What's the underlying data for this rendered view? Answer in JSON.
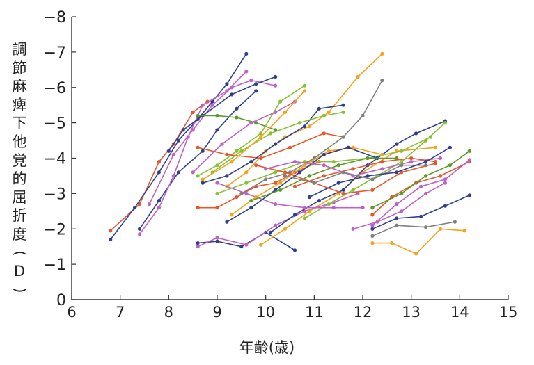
{
  "chart_data": {
    "type": "line",
    "title": "",
    "xlabel": "年齢(歳)",
    "ylabel": "調節麻痺下他覚的屈折度(D)",
    "xlim": [
      6,
      15
    ],
    "ylim": [
      0,
      -8
    ],
    "xticks": [
      "6",
      "7",
      "8",
      "9",
      "10",
      "11",
      "12",
      "13",
      "14",
      "15"
    ],
    "yticks": [
      "0",
      "−1",
      "−2",
      "−3",
      "−4",
      "−5",
      "−6",
      "−7",
      "−8"
    ],
    "grid": false,
    "legend": "none",
    "series": [
      {
        "color": "#e8562a",
        "points": [
          [
            6.8,
            -1.95
          ],
          [
            7.4,
            -2.7
          ],
          [
            7.8,
            -3.9
          ],
          [
            8.1,
            -4.4
          ],
          [
            8.5,
            -5.3
          ],
          [
            8.8,
            -5.6
          ]
        ]
      },
      {
        "color": "#2f3f8f",
        "points": [
          [
            6.8,
            -1.7
          ],
          [
            7.3,
            -2.6
          ],
          [
            7.8,
            -3.6
          ],
          [
            8.2,
            -4.5
          ],
          [
            8.6,
            -5.1
          ],
          [
            8.9,
            -5.6
          ],
          [
            9.2,
            -6.1
          ],
          [
            9.6,
            -6.95
          ]
        ]
      },
      {
        "color": "#2f3f8f",
        "points": [
          [
            7.4,
            -2.0
          ],
          [
            7.8,
            -2.8
          ],
          [
            8.2,
            -3.6
          ],
          [
            8.7,
            -4.2
          ],
          [
            9.0,
            -4.8
          ],
          [
            9.4,
            -5.4
          ],
          [
            9.8,
            -5.9
          ]
        ]
      },
      {
        "color": "#c060c8",
        "points": [
          [
            7.4,
            -1.85
          ],
          [
            7.8,
            -2.6
          ],
          [
            8.1,
            -3.5
          ],
          [
            8.4,
            -4.6
          ],
          [
            8.7,
            -5.5
          ],
          [
            9.2,
            -5.9
          ],
          [
            9.6,
            -6.45
          ]
        ]
      },
      {
        "color": "#c060c8",
        "points": [
          [
            7.6,
            -2.7
          ],
          [
            8.1,
            -4.1
          ],
          [
            8.5,
            -4.8
          ],
          [
            8.9,
            -5.5
          ],
          [
            9.3,
            -6.0
          ],
          [
            9.7,
            -6.2
          ],
          [
            10.2,
            -6.05
          ]
        ]
      },
      {
        "color": "#2f3f8f",
        "points": [
          [
            8.0,
            -4.2
          ],
          [
            8.3,
            -4.8
          ],
          [
            8.7,
            -5.2
          ],
          [
            9.3,
            -5.8
          ],
          [
            9.8,
            -6.1
          ],
          [
            10.2,
            -6.3
          ]
        ]
      },
      {
        "color": "#5a9a28",
        "points": [
          [
            8.6,
            -5.2
          ],
          [
            9.0,
            -5.2
          ],
          [
            9.4,
            -5.15
          ],
          [
            9.8,
            -5.0
          ],
          [
            10.2,
            -4.8
          ]
        ]
      },
      {
        "color": "#88c034",
        "points": [
          [
            8.6,
            -3.5
          ],
          [
            9.0,
            -3.8
          ],
          [
            9.4,
            -4.2
          ],
          [
            9.9,
            -4.7
          ],
          [
            10.3,
            -5.6
          ],
          [
            10.8,
            -6.05
          ]
        ]
      },
      {
        "color": "#f5a31a",
        "points": [
          [
            9.2,
            -3.2
          ],
          [
            9.6,
            -3.6
          ],
          [
            10.0,
            -4.2
          ],
          [
            10.4,
            -4.6
          ],
          [
            10.9,
            -4.9
          ],
          [
            11.3,
            -5.3
          ],
          [
            11.9,
            -6.3
          ],
          [
            12.4,
            -6.95
          ]
        ]
      },
      {
        "color": "#e8562a",
        "points": [
          [
            8.6,
            -2.6
          ],
          [
            9.0,
            -2.6
          ],
          [
            9.4,
            -2.9
          ],
          [
            9.8,
            -3.2
          ],
          [
            10.2,
            -3.3
          ],
          [
            10.6,
            -3.6
          ],
          [
            11.1,
            -3.9
          ]
        ]
      },
      {
        "color": "#2f3f8f",
        "points": [
          [
            8.6,
            -1.6
          ],
          [
            9.0,
            -1.65
          ],
          [
            9.5,
            -1.5
          ],
          [
            10.0,
            -1.9
          ],
          [
            10.6,
            -1.4
          ]
        ]
      },
      {
        "color": "#c060c8",
        "points": [
          [
            8.6,
            -1.5
          ],
          [
            9.0,
            -1.75
          ],
          [
            9.6,
            -1.55
          ],
          [
            10.2,
            -2.1
          ],
          [
            10.8,
            -2.5
          ],
          [
            11.4,
            -2.75
          ],
          [
            11.9,
            -3.0
          ]
        ]
      },
      {
        "color": "#f5a31a",
        "points": [
          [
            9.9,
            -1.55
          ],
          [
            10.4,
            -2.0
          ],
          [
            10.9,
            -2.5
          ],
          [
            11.5,
            -3.0
          ],
          [
            12.0,
            -3.6
          ],
          [
            12.7,
            -4.2
          ],
          [
            13.5,
            -4.3
          ]
        ]
      },
      {
        "color": "#2f3f8f",
        "points": [
          [
            10.1,
            -1.9
          ],
          [
            10.6,
            -2.4
          ],
          [
            11.1,
            -2.8
          ],
          [
            11.6,
            -3.1
          ],
          [
            12.1,
            -3.8
          ],
          [
            12.7,
            -4.4
          ],
          [
            13.1,
            -4.7
          ],
          [
            13.7,
            -5.05
          ]
        ]
      },
      {
        "color": "#88c034",
        "points": [
          [
            10.8,
            -2.3
          ],
          [
            11.3,
            -2.7
          ],
          [
            11.8,
            -3.1
          ],
          [
            12.3,
            -3.5
          ],
          [
            12.8,
            -3.9
          ],
          [
            13.3,
            -4.5
          ],
          [
            13.7,
            -5.0
          ]
        ]
      },
      {
        "color": "#e8562a",
        "points": [
          [
            12.2,
            -2.4
          ],
          [
            12.6,
            -2.9
          ],
          [
            13.1,
            -3.3
          ],
          [
            13.6,
            -3.5
          ],
          [
            14.2,
            -3.9
          ]
        ]
      },
      {
        "color": "#c060c8",
        "points": [
          [
            12.2,
            -2.1
          ],
          [
            12.7,
            -2.7
          ],
          [
            13.2,
            -3.2
          ],
          [
            13.7,
            -3.4
          ],
          [
            14.2,
            -3.95
          ]
        ]
      },
      {
        "color": "#2f3f8f",
        "points": [
          [
            12.2,
            -2.0
          ],
          [
            12.7,
            -2.3
          ],
          [
            13.2,
            -2.35
          ],
          [
            13.7,
            -2.65
          ],
          [
            14.2,
            -2.95
          ]
        ]
      },
      {
        "color": "#808080",
        "points": [
          [
            12.2,
            -1.8
          ],
          [
            12.7,
            -2.1
          ],
          [
            13.3,
            -2.05
          ],
          [
            13.9,
            -2.2
          ]
        ]
      },
      {
        "color": "#f5a31a",
        "points": [
          [
            12.2,
            -1.6
          ],
          [
            12.6,
            -1.6
          ],
          [
            13.1,
            -1.3
          ],
          [
            13.6,
            -2.0
          ],
          [
            14.1,
            -1.95
          ]
        ]
      },
      {
        "color": "#5a9a28",
        "points": [
          [
            12.2,
            -2.6
          ],
          [
            12.8,
            -3.0
          ],
          [
            13.3,
            -3.5
          ],
          [
            13.8,
            -3.8
          ],
          [
            14.2,
            -4.2
          ]
        ]
      },
      {
        "color": "#c060c8",
        "points": [
          [
            11.8,
            -2.0
          ],
          [
            12.3,
            -2.2
          ],
          [
            12.8,
            -2.5
          ],
          [
            13.3,
            -3.0
          ],
          [
            13.7,
            -3.3
          ]
        ]
      },
      {
        "color": "#e8562a",
        "points": [
          [
            8.6,
            -4.3
          ],
          [
            9.2,
            -4.1
          ],
          [
            9.9,
            -4.0
          ],
          [
            10.5,
            -4.3
          ],
          [
            11.2,
            -4.7
          ],
          [
            11.6,
            -4.6
          ]
        ]
      },
      {
        "color": "#2f3f8f",
        "points": [
          [
            8.7,
            -3.3
          ],
          [
            9.2,
            -3.5
          ],
          [
            9.7,
            -3.9
          ],
          [
            10.2,
            -4.4
          ],
          [
            10.8,
            -4.9
          ],
          [
            11.1,
            -5.4
          ],
          [
            11.6,
            -5.5
          ]
        ]
      },
      {
        "color": "#c060c8",
        "points": [
          [
            9.0,
            -3.3
          ],
          [
            9.6,
            -3.0
          ],
          [
            10.2,
            -2.7
          ],
          [
            10.8,
            -2.6
          ],
          [
            11.4,
            -2.6
          ],
          [
            12.0,
            -2.6
          ]
        ]
      },
      {
        "color": "#88c034",
        "points": [
          [
            9.0,
            -3.0
          ],
          [
            9.6,
            -3.3
          ],
          [
            10.2,
            -3.6
          ],
          [
            10.8,
            -3.9
          ],
          [
            11.4,
            -3.9
          ],
          [
            12.1,
            -4.0
          ],
          [
            12.8,
            -4.2
          ],
          [
            13.4,
            -4.6
          ]
        ]
      },
      {
        "color": "#808080",
        "points": [
          [
            9.5,
            -3.0
          ],
          [
            10.0,
            -3.4
          ],
          [
            10.5,
            -3.6
          ],
          [
            11.0,
            -4.0
          ],
          [
            11.6,
            -4.6
          ],
          [
            12.0,
            -5.2
          ],
          [
            12.4,
            -6.2
          ]
        ]
      },
      {
        "color": "#f5a31a",
        "points": [
          [
            9.3,
            -2.4
          ],
          [
            9.8,
            -2.9
          ],
          [
            10.3,
            -3.3
          ],
          [
            10.8,
            -3.8
          ],
          [
            11.3,
            -4.2
          ],
          [
            11.8,
            -4.3
          ],
          [
            12.4,
            -4.1
          ]
        ]
      },
      {
        "color": "#e8562a",
        "points": [
          [
            9.8,
            -3.8
          ],
          [
            10.4,
            -3.6
          ],
          [
            11.0,
            -3.3
          ],
          [
            11.6,
            -3.0
          ],
          [
            12.2,
            -3.1
          ],
          [
            12.8,
            -3.6
          ],
          [
            13.5,
            -3.85
          ]
        ]
      },
      {
        "color": "#2f3f8f",
        "points": [
          [
            9.2,
            -2.2
          ],
          [
            9.7,
            -2.6
          ],
          [
            10.2,
            -3.1
          ],
          [
            10.7,
            -3.6
          ],
          [
            11.2,
            -4.1
          ],
          [
            11.7,
            -4.3
          ],
          [
            12.3,
            -4.0
          ]
        ]
      },
      {
        "color": "#c060c8",
        "points": [
          [
            10.0,
            -3.7
          ],
          [
            10.6,
            -3.9
          ],
          [
            11.2,
            -3.8
          ],
          [
            11.8,
            -3.5
          ],
          [
            12.4,
            -3.7
          ],
          [
            13.0,
            -3.9
          ],
          [
            13.6,
            -4.0
          ]
        ]
      },
      {
        "color": "#88c034",
        "points": [
          [
            8.9,
            -3.6
          ],
          [
            9.5,
            -4.2
          ],
          [
            10.1,
            -4.7
          ],
          [
            10.7,
            -5.0
          ],
          [
            11.2,
            -5.2
          ],
          [
            11.6,
            -5.3
          ]
        ]
      },
      {
        "color": "#5a9a28",
        "points": [
          [
            9.7,
            -2.8
          ],
          [
            10.3,
            -3.1
          ],
          [
            10.9,
            -3.5
          ],
          [
            11.5,
            -3.8
          ],
          [
            12.1,
            -4.0
          ],
          [
            12.7,
            -4.0
          ]
        ]
      },
      {
        "color": "#c060c8",
        "points": [
          [
            8.5,
            -3.6
          ],
          [
            9.1,
            -4.4
          ],
          [
            9.7,
            -5.0
          ],
          [
            10.2,
            -5.3
          ],
          [
            10.6,
            -5.6
          ]
        ]
      },
      {
        "color": "#f5a31a",
        "points": [
          [
            8.7,
            -3.4
          ],
          [
            9.3,
            -3.9
          ],
          [
            9.9,
            -4.6
          ],
          [
            10.4,
            -5.3
          ],
          [
            10.8,
            -5.9
          ]
        ]
      },
      {
        "color": "#e8562a",
        "points": [
          [
            10.6,
            -3.2
          ],
          [
            11.2,
            -3.5
          ],
          [
            11.8,
            -3.7
          ],
          [
            12.4,
            -3.9
          ],
          [
            13.0,
            -4.0
          ],
          [
            13.5,
            -3.9
          ]
        ]
      },
      {
        "color": "#808080",
        "points": [
          [
            10.4,
            -3.5
          ],
          [
            11.0,
            -3.3
          ],
          [
            11.6,
            -3.6
          ],
          [
            12.2,
            -3.4
          ],
          [
            12.8,
            -3.8
          ],
          [
            13.3,
            -3.8
          ]
        ]
      },
      {
        "color": "#2f3f8f",
        "points": [
          [
            10.9,
            -2.9
          ],
          [
            11.5,
            -3.3
          ],
          [
            12.1,
            -3.5
          ],
          [
            12.7,
            -3.6
          ],
          [
            13.3,
            -3.9
          ],
          [
            13.8,
            -4.3
          ]
        ]
      }
    ]
  }
}
